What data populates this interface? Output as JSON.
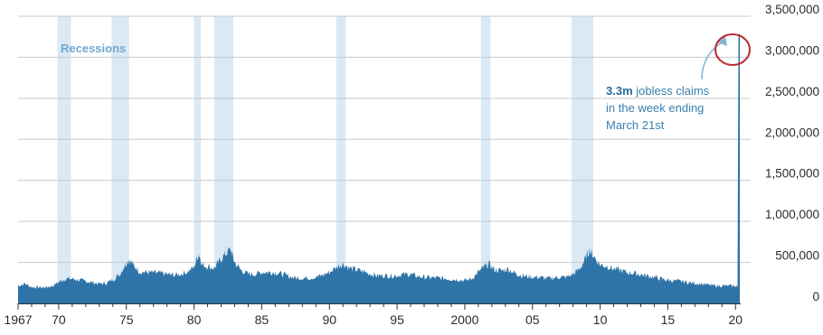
{
  "chart_data": {
    "type": "area",
    "title": "",
    "xlabel": "",
    "ylabel": "",
    "x_tick_labels": [
      {
        "year": 1967,
        "label": "1967"
      },
      {
        "year": 1970,
        "label": "70"
      },
      {
        "year": 1975,
        "label": "75"
      },
      {
        "year": 1980,
        "label": "80"
      },
      {
        "year": 1985,
        "label": "85"
      },
      {
        "year": 1990,
        "label": "90"
      },
      {
        "year": 1995,
        "label": "95"
      },
      {
        "year": 2000,
        "label": "2000"
      },
      {
        "year": 2005,
        "label": "05"
      },
      {
        "year": 2010,
        "label": "10"
      },
      {
        "year": 2015,
        "label": "15"
      },
      {
        "year": 2020,
        "label": "20"
      }
    ],
    "y_ticks": [
      {
        "value": 0,
        "label": "0"
      },
      {
        "value": 500000,
        "label": "500,000"
      },
      {
        "value": 1000000,
        "label": "1,000,000"
      },
      {
        "value": 1500000,
        "label": "1,500,000"
      },
      {
        "value": 2000000,
        "label": "2,000,000"
      },
      {
        "value": 2500000,
        "label": "2,500,000"
      },
      {
        "value": 3000000,
        "label": "3,000,000"
      },
      {
        "value": 3500000,
        "label": "3,500,000"
      }
    ],
    "xlim": [
      1967,
      2020.25
    ],
    "ylim": [
      0,
      3500000
    ],
    "grid": "horizontal",
    "recessions_label": "Recessions",
    "recessions": [
      [
        1969.9,
        1970.9
      ],
      [
        1973.9,
        1975.2
      ],
      [
        1980.0,
        1980.5
      ],
      [
        1981.5,
        1982.9
      ],
      [
        1990.5,
        1991.2
      ],
      [
        2001.2,
        2001.9
      ],
      [
        2007.9,
        2009.5
      ]
    ],
    "series": [
      {
        "color": "#2f74a8",
        "points": [
          [
            1967.0,
            215000
          ],
          [
            1967.5,
            240000
          ],
          [
            1968.0,
            200000
          ],
          [
            1968.5,
            195000
          ],
          [
            1969.0,
            195000
          ],
          [
            1969.5,
            210000
          ],
          [
            1970.0,
            260000
          ],
          [
            1970.5,
            300000
          ],
          [
            1971.0,
            300000
          ],
          [
            1971.5,
            285000
          ],
          [
            1972.0,
            270000
          ],
          [
            1972.5,
            255000
          ],
          [
            1973.0,
            240000
          ],
          [
            1973.5,
            245000
          ],
          [
            1974.0,
            290000
          ],
          [
            1974.5,
            350000
          ],
          [
            1974.9,
            470000
          ],
          [
            1975.2,
            535000
          ],
          [
            1975.5,
            470000
          ],
          [
            1976.0,
            385000
          ],
          [
            1976.5,
            380000
          ],
          [
            1977.0,
            375000
          ],
          [
            1977.5,
            370000
          ],
          [
            1978.0,
            355000
          ],
          [
            1978.5,
            345000
          ],
          [
            1979.0,
            355000
          ],
          [
            1979.5,
            385000
          ],
          [
            1980.0,
            440000
          ],
          [
            1980.35,
            610000
          ],
          [
            1980.6,
            470000
          ],
          [
            1981.0,
            450000
          ],
          [
            1981.5,
            430000
          ],
          [
            1981.9,
            520000
          ],
          [
            1982.3,
            600000
          ],
          [
            1982.7,
            660000
          ],
          [
            1983.0,
            500000
          ],
          [
            1983.5,
            400000
          ],
          [
            1984.0,
            360000
          ],
          [
            1984.5,
            355000
          ],
          [
            1985.0,
            380000
          ],
          [
            1985.5,
            380000
          ],
          [
            1986.0,
            375000
          ],
          [
            1986.5,
            360000
          ],
          [
            1987.0,
            330000
          ],
          [
            1987.5,
            310000
          ],
          [
            1988.0,
            310000
          ],
          [
            1988.5,
            310000
          ],
          [
            1989.0,
            320000
          ],
          [
            1989.5,
            345000
          ],
          [
            1990.0,
            380000
          ],
          [
            1990.6,
            450000
          ],
          [
            1991.0,
            480000
          ],
          [
            1991.5,
            430000
          ],
          [
            1992.0,
            410000
          ],
          [
            1992.5,
            390000
          ],
          [
            1993.0,
            360000
          ],
          [
            1993.5,
            340000
          ],
          [
            1994.0,
            340000
          ],
          [
            1994.5,
            335000
          ],
          [
            1995.0,
            340000
          ],
          [
            1995.5,
            355000
          ],
          [
            1996.0,
            355000
          ],
          [
            1996.5,
            330000
          ],
          [
            1997.0,
            320000
          ],
          [
            1997.5,
            315000
          ],
          [
            1998.0,
            310000
          ],
          [
            1998.5,
            305000
          ],
          [
            1999.0,
            295000
          ],
          [
            1999.5,
            290000
          ],
          [
            2000.0,
            280000
          ],
          [
            2000.5,
            300000
          ],
          [
            2001.0,
            380000
          ],
          [
            2001.4,
            440000
          ],
          [
            2001.8,
            480000
          ],
          [
            2002.2,
            410000
          ],
          [
            2002.7,
            400000
          ],
          [
            2003.2,
            420000
          ],
          [
            2003.7,
            370000
          ],
          [
            2004.0,
            345000
          ],
          [
            2004.5,
            330000
          ],
          [
            2005.0,
            320000
          ],
          [
            2005.5,
            320000
          ],
          [
            2006.0,
            305000
          ],
          [
            2006.5,
            310000
          ],
          [
            2007.0,
            320000
          ],
          [
            2007.5,
            320000
          ],
          [
            2008.0,
            355000
          ],
          [
            2008.5,
            420000
          ],
          [
            2008.9,
            540000
          ],
          [
            2009.2,
            650000
          ],
          [
            2009.5,
            580000
          ],
          [
            2010.0,
            470000
          ],
          [
            2010.5,
            455000
          ],
          [
            2011.0,
            420000
          ],
          [
            2011.5,
            405000
          ],
          [
            2012.0,
            375000
          ],
          [
            2012.5,
            370000
          ],
          [
            2013.0,
            350000
          ],
          [
            2013.5,
            335000
          ],
          [
            2014.0,
            320000
          ],
          [
            2014.5,
            300000
          ],
          [
            2015.0,
            285000
          ],
          [
            2015.5,
            275000
          ],
          [
            2016.0,
            270000
          ],
          [
            2016.5,
            255000
          ],
          [
            2017.0,
            245000
          ],
          [
            2017.5,
            240000
          ],
          [
            2018.0,
            225000
          ],
          [
            2018.5,
            215000
          ],
          [
            2019.0,
            215000
          ],
          [
            2019.5,
            215000
          ],
          [
            2020.0,
            212000
          ],
          [
            2020.15,
            211000
          ],
          [
            2020.22,
            3283000
          ]
        ]
      }
    ],
    "annotation": {
      "bold": "3.3m",
      "lines": [
        "jobless claims",
        "in the week ending",
        "March 21st"
      ],
      "value": 3283000
    }
  }
}
